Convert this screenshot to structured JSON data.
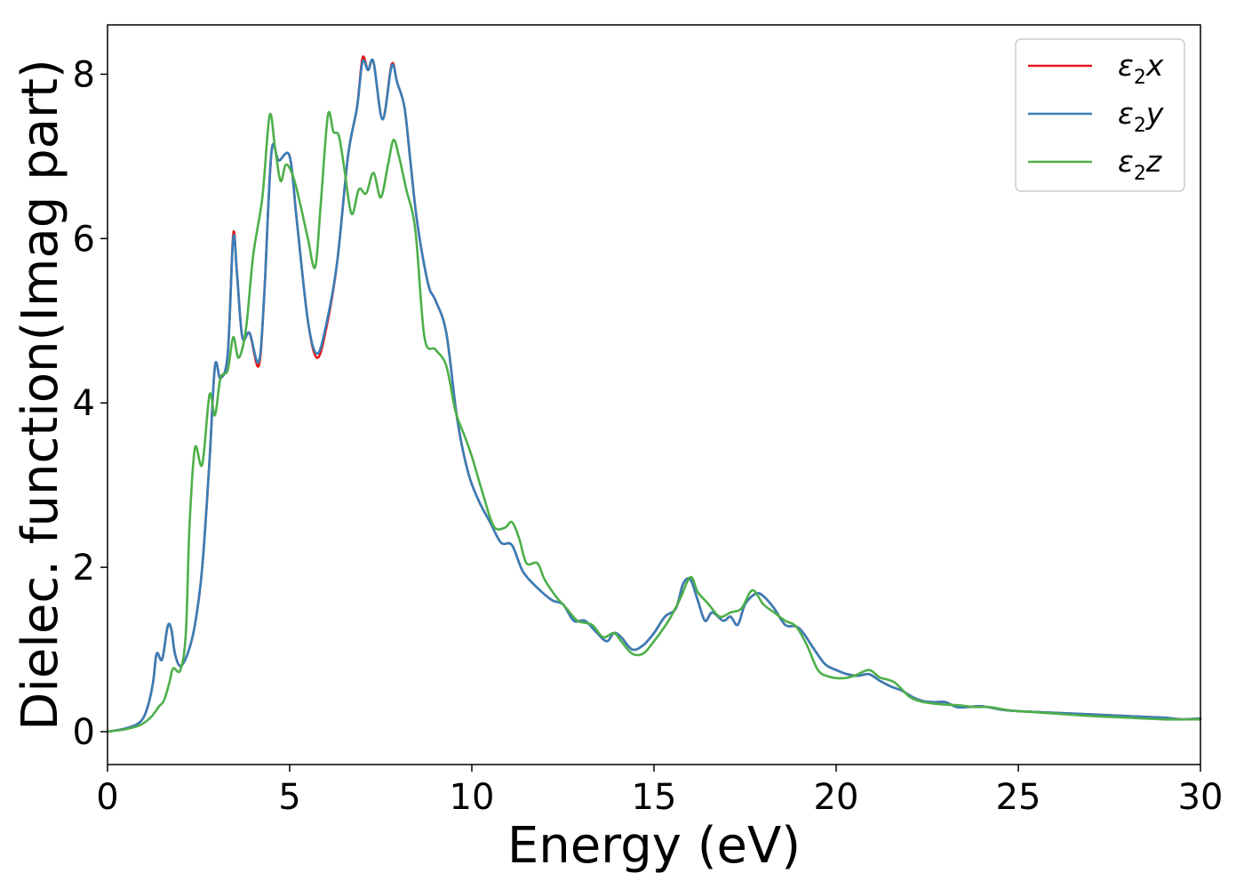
{
  "chart_data": {
    "type": "line",
    "title": "",
    "xlabel": "Energy (eV)",
    "ylabel": "Dielec. function(Imag part)",
    "xlim": [
      0,
      30
    ],
    "ylim": [
      -0.4,
      8.6
    ],
    "xticks": [
      0,
      5,
      10,
      15,
      20,
      25,
      30
    ],
    "xtick_labels": [
      "0",
      "5",
      "10",
      "15",
      "20",
      "25",
      "30"
    ],
    "yticks": [
      0,
      2,
      4,
      6,
      8
    ],
    "ytick_labels": [
      "0",
      "2",
      "4",
      "6",
      "8"
    ],
    "grid": false,
    "legend_position": "top-right",
    "series": [
      {
        "name": "ε2x",
        "legend_base": "ε",
        "legend_sub": "2",
        "legend_tail": "x",
        "color": "#e41a1c",
        "points": [
          [
            0,
            0
          ],
          [
            0.5,
            0.04
          ],
          [
            0.9,
            0.12
          ],
          [
            1.1,
            0.3
          ],
          [
            1.25,
            0.6
          ],
          [
            1.35,
            0.95
          ],
          [
            1.5,
            0.88
          ],
          [
            1.65,
            1.28
          ],
          [
            1.75,
            1.25
          ],
          [
            1.85,
            0.95
          ],
          [
            2.0,
            0.8
          ],
          [
            2.2,
            0.95
          ],
          [
            2.4,
            1.3
          ],
          [
            2.6,
            2.0
          ],
          [
            2.8,
            3.3
          ],
          [
            2.95,
            4.45
          ],
          [
            3.1,
            4.3
          ],
          [
            3.3,
            4.6
          ],
          [
            3.45,
            6.05
          ],
          [
            3.55,
            5.6
          ],
          [
            3.7,
            4.8
          ],
          [
            3.9,
            4.85
          ],
          [
            4.15,
            4.45
          ],
          [
            4.3,
            5.3
          ],
          [
            4.5,
            7.05
          ],
          [
            4.7,
            6.95
          ],
          [
            5.0,
            7.0
          ],
          [
            5.2,
            6.2
          ],
          [
            5.5,
            5.0
          ],
          [
            5.75,
            4.55
          ],
          [
            6.0,
            4.9
          ],
          [
            6.3,
            5.7
          ],
          [
            6.6,
            7.0
          ],
          [
            6.85,
            7.6
          ],
          [
            7.0,
            8.2
          ],
          [
            7.15,
            8.05
          ],
          [
            7.3,
            8.15
          ],
          [
            7.55,
            7.45
          ],
          [
            7.8,
            8.12
          ],
          [
            7.95,
            7.9
          ],
          [
            8.15,
            7.6
          ],
          [
            8.3,
            7.0
          ],
          [
            8.5,
            6.2
          ],
          [
            8.8,
            5.45
          ],
          [
            9.0,
            5.25
          ],
          [
            9.3,
            4.85
          ],
          [
            9.6,
            3.8
          ],
          [
            9.9,
            3.15
          ],
          [
            10.2,
            2.8
          ],
          [
            10.5,
            2.55
          ],
          [
            10.8,
            2.3
          ],
          [
            11.1,
            2.27
          ],
          [
            11.4,
            1.95
          ],
          [
            11.8,
            1.75
          ],
          [
            12.2,
            1.6
          ],
          [
            12.5,
            1.55
          ],
          [
            12.8,
            1.35
          ],
          [
            13.1,
            1.35
          ],
          [
            13.4,
            1.22
          ],
          [
            13.7,
            1.1
          ],
          [
            13.9,
            1.2
          ],
          [
            14.1,
            1.15
          ],
          [
            14.4,
            1.0
          ],
          [
            14.7,
            1.05
          ],
          [
            15.0,
            1.2
          ],
          [
            15.3,
            1.4
          ],
          [
            15.6,
            1.5
          ],
          [
            15.8,
            1.8
          ],
          [
            16.0,
            1.85
          ],
          [
            16.2,
            1.6
          ],
          [
            16.4,
            1.35
          ],
          [
            16.6,
            1.45
          ],
          [
            16.9,
            1.35
          ],
          [
            17.1,
            1.4
          ],
          [
            17.3,
            1.3
          ],
          [
            17.5,
            1.55
          ],
          [
            17.8,
            1.68
          ],
          [
            18.0,
            1.65
          ],
          [
            18.3,
            1.5
          ],
          [
            18.6,
            1.3
          ],
          [
            18.9,
            1.28
          ],
          [
            19.1,
            1.2
          ],
          [
            19.4,
            1.0
          ],
          [
            19.7,
            0.82
          ],
          [
            20.0,
            0.75
          ],
          [
            20.3,
            0.7
          ],
          [
            20.6,
            0.68
          ],
          [
            20.9,
            0.7
          ],
          [
            21.2,
            0.62
          ],
          [
            21.5,
            0.55
          ],
          [
            21.8,
            0.5
          ],
          [
            22.1,
            0.42
          ],
          [
            22.4,
            0.37
          ],
          [
            22.7,
            0.36
          ],
          [
            23.0,
            0.36
          ],
          [
            23.3,
            0.3
          ],
          [
            23.6,
            0.3
          ],
          [
            24.0,
            0.31
          ],
          [
            24.5,
            0.27
          ],
          [
            25.0,
            0.25
          ],
          [
            26.0,
            0.23
          ],
          [
            27.0,
            0.21
          ],
          [
            28.0,
            0.19
          ],
          [
            29.0,
            0.17
          ],
          [
            29.5,
            0.15
          ],
          [
            30.0,
            0.16
          ]
        ]
      },
      {
        "name": "ε2y",
        "legend_base": "ε",
        "legend_sub": "2",
        "legend_tail": "y",
        "color": "#377eb8",
        "points": [
          [
            0,
            0
          ],
          [
            0.5,
            0.04
          ],
          [
            0.9,
            0.12
          ],
          [
            1.1,
            0.3
          ],
          [
            1.25,
            0.6
          ],
          [
            1.35,
            0.95
          ],
          [
            1.5,
            0.88
          ],
          [
            1.65,
            1.28
          ],
          [
            1.75,
            1.25
          ],
          [
            1.85,
            0.95
          ],
          [
            2.0,
            0.8
          ],
          [
            2.2,
            0.95
          ],
          [
            2.4,
            1.3
          ],
          [
            2.6,
            2.0
          ],
          [
            2.8,
            3.3
          ],
          [
            2.95,
            4.45
          ],
          [
            3.1,
            4.3
          ],
          [
            3.3,
            4.6
          ],
          [
            3.45,
            6.0
          ],
          [
            3.55,
            5.6
          ],
          [
            3.7,
            4.8
          ],
          [
            3.9,
            4.85
          ],
          [
            4.15,
            4.5
          ],
          [
            4.3,
            5.3
          ],
          [
            4.5,
            7.05
          ],
          [
            4.7,
            6.95
          ],
          [
            5.0,
            7.0
          ],
          [
            5.2,
            6.2
          ],
          [
            5.5,
            5.0
          ],
          [
            5.75,
            4.6
          ],
          [
            6.0,
            4.95
          ],
          [
            6.3,
            5.7
          ],
          [
            6.6,
            7.0
          ],
          [
            6.85,
            7.6
          ],
          [
            7.0,
            8.15
          ],
          [
            7.15,
            8.05
          ],
          [
            7.3,
            8.15
          ],
          [
            7.55,
            7.45
          ],
          [
            7.8,
            8.1
          ],
          [
            7.95,
            7.9
          ],
          [
            8.15,
            7.6
          ],
          [
            8.3,
            7.0
          ],
          [
            8.5,
            6.2
          ],
          [
            8.8,
            5.45
          ],
          [
            9.0,
            5.25
          ],
          [
            9.3,
            4.85
          ],
          [
            9.6,
            3.8
          ],
          [
            9.9,
            3.15
          ],
          [
            10.2,
            2.8
          ],
          [
            10.5,
            2.55
          ],
          [
            10.8,
            2.3
          ],
          [
            11.1,
            2.27
          ],
          [
            11.4,
            1.95
          ],
          [
            11.8,
            1.75
          ],
          [
            12.2,
            1.6
          ],
          [
            12.5,
            1.55
          ],
          [
            12.8,
            1.35
          ],
          [
            13.1,
            1.35
          ],
          [
            13.4,
            1.22
          ],
          [
            13.7,
            1.1
          ],
          [
            13.9,
            1.2
          ],
          [
            14.1,
            1.15
          ],
          [
            14.4,
            1.0
          ],
          [
            14.7,
            1.05
          ],
          [
            15.0,
            1.2
          ],
          [
            15.3,
            1.4
          ],
          [
            15.6,
            1.5
          ],
          [
            15.8,
            1.8
          ],
          [
            16.0,
            1.85
          ],
          [
            16.2,
            1.6
          ],
          [
            16.4,
            1.35
          ],
          [
            16.6,
            1.45
          ],
          [
            16.9,
            1.35
          ],
          [
            17.1,
            1.4
          ],
          [
            17.3,
            1.3
          ],
          [
            17.5,
            1.55
          ],
          [
            17.8,
            1.68
          ],
          [
            18.0,
            1.65
          ],
          [
            18.3,
            1.5
          ],
          [
            18.6,
            1.3
          ],
          [
            18.9,
            1.28
          ],
          [
            19.1,
            1.2
          ],
          [
            19.4,
            1.0
          ],
          [
            19.7,
            0.82
          ],
          [
            20.0,
            0.75
          ],
          [
            20.3,
            0.7
          ],
          [
            20.6,
            0.68
          ],
          [
            20.9,
            0.7
          ],
          [
            21.2,
            0.62
          ],
          [
            21.5,
            0.55
          ],
          [
            21.8,
            0.5
          ],
          [
            22.1,
            0.42
          ],
          [
            22.4,
            0.37
          ],
          [
            22.7,
            0.36
          ],
          [
            23.0,
            0.36
          ],
          [
            23.3,
            0.3
          ],
          [
            23.6,
            0.3
          ],
          [
            24.0,
            0.31
          ],
          [
            24.5,
            0.27
          ],
          [
            25.0,
            0.25
          ],
          [
            26.0,
            0.23
          ],
          [
            27.0,
            0.21
          ],
          [
            28.0,
            0.19
          ],
          [
            29.0,
            0.17
          ],
          [
            29.5,
            0.15
          ],
          [
            30.0,
            0.16
          ]
        ]
      },
      {
        "name": "ε2z",
        "legend_base": "ε",
        "legend_sub": "2",
        "legend_tail": "z",
        "color": "#4daf4a",
        "points": [
          [
            0,
            0
          ],
          [
            0.5,
            0.03
          ],
          [
            0.9,
            0.08
          ],
          [
            1.2,
            0.18
          ],
          [
            1.4,
            0.3
          ],
          [
            1.55,
            0.38
          ],
          [
            1.7,
            0.6
          ],
          [
            1.8,
            0.77
          ],
          [
            2.0,
            0.75
          ],
          [
            2.15,
            1.2
          ],
          [
            2.25,
            2.5
          ],
          [
            2.4,
            3.45
          ],
          [
            2.6,
            3.25
          ],
          [
            2.8,
            4.1
          ],
          [
            2.95,
            3.85
          ],
          [
            3.1,
            4.3
          ],
          [
            3.3,
            4.4
          ],
          [
            3.45,
            4.8
          ],
          [
            3.6,
            4.55
          ],
          [
            3.8,
            4.9
          ],
          [
            4.0,
            5.8
          ],
          [
            4.25,
            6.5
          ],
          [
            4.45,
            7.5
          ],
          [
            4.6,
            7.1
          ],
          [
            4.75,
            6.7
          ],
          [
            4.9,
            6.9
          ],
          [
            5.1,
            6.75
          ],
          [
            5.3,
            6.4
          ],
          [
            5.5,
            6.0
          ],
          [
            5.7,
            5.65
          ],
          [
            5.85,
            6.4
          ],
          [
            6.05,
            7.5
          ],
          [
            6.2,
            7.3
          ],
          [
            6.35,
            7.25
          ],
          [
            6.5,
            6.85
          ],
          [
            6.7,
            6.3
          ],
          [
            6.9,
            6.6
          ],
          [
            7.1,
            6.55
          ],
          [
            7.3,
            6.8
          ],
          [
            7.5,
            6.5
          ],
          [
            7.7,
            6.9
          ],
          [
            7.85,
            7.2
          ],
          [
            8.0,
            7.0
          ],
          [
            8.2,
            6.6
          ],
          [
            8.45,
            6.1
          ],
          [
            8.7,
            4.8
          ],
          [
            9.0,
            4.65
          ],
          [
            9.3,
            4.45
          ],
          [
            9.55,
            3.9
          ],
          [
            9.8,
            3.6
          ],
          [
            10.0,
            3.35
          ],
          [
            10.3,
            2.9
          ],
          [
            10.6,
            2.5
          ],
          [
            10.9,
            2.48
          ],
          [
            11.1,
            2.55
          ],
          [
            11.3,
            2.35
          ],
          [
            11.5,
            2.05
          ],
          [
            11.8,
            2.05
          ],
          [
            12.0,
            1.85
          ],
          [
            12.3,
            1.65
          ],
          [
            12.6,
            1.5
          ],
          [
            12.9,
            1.35
          ],
          [
            13.3,
            1.3
          ],
          [
            13.6,
            1.15
          ],
          [
            13.9,
            1.2
          ],
          [
            14.1,
            1.1
          ],
          [
            14.4,
            0.95
          ],
          [
            14.7,
            0.95
          ],
          [
            15.0,
            1.1
          ],
          [
            15.4,
            1.35
          ],
          [
            15.7,
            1.6
          ],
          [
            16.0,
            1.88
          ],
          [
            16.2,
            1.7
          ],
          [
            16.5,
            1.55
          ],
          [
            16.8,
            1.4
          ],
          [
            17.1,
            1.45
          ],
          [
            17.4,
            1.5
          ],
          [
            17.7,
            1.72
          ],
          [
            18.0,
            1.55
          ],
          [
            18.3,
            1.45
          ],
          [
            18.6,
            1.35
          ],
          [
            18.9,
            1.28
          ],
          [
            19.2,
            1.05
          ],
          [
            19.5,
            0.75
          ],
          [
            19.8,
            0.67
          ],
          [
            20.2,
            0.65
          ],
          [
            20.5,
            0.68
          ],
          [
            20.9,
            0.75
          ],
          [
            21.2,
            0.66
          ],
          [
            21.6,
            0.6
          ],
          [
            22.0,
            0.43
          ],
          [
            22.3,
            0.37
          ],
          [
            22.7,
            0.34
          ],
          [
            23.0,
            0.33
          ],
          [
            23.4,
            0.32
          ],
          [
            23.8,
            0.3
          ],
          [
            24.2,
            0.3
          ],
          [
            24.6,
            0.27
          ],
          [
            25.0,
            0.25
          ],
          [
            26.0,
            0.22
          ],
          [
            27.0,
            0.19
          ],
          [
            28.0,
            0.17
          ],
          [
            29.0,
            0.15
          ],
          [
            30.0,
            0.15
          ]
        ]
      }
    ]
  }
}
